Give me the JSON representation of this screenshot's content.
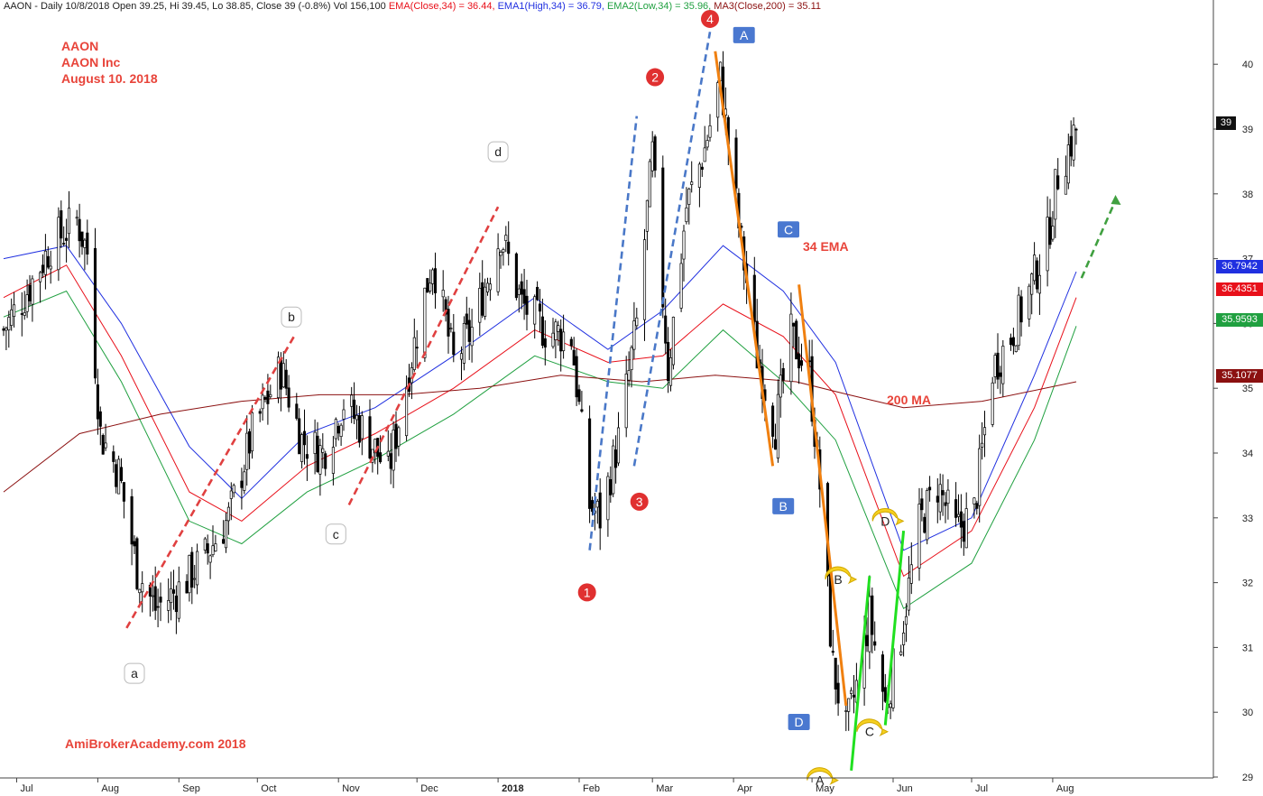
{
  "header": {
    "symbol_info": "AAON - Daily 10/8/2018 Open 39.25, Hi 39.45, Lo 38.85, Close 39 (-0.8%) Vol 156,100 ",
    "ema_close": "EMA(Close,34) = 36.44, ",
    "ema_high": "EMA1(High,34) = 36.79, ",
    "ema_low": "EMA2(Low,34) = 35.96, ",
    "ma200": "MA3(Close,200) = 35.11"
  },
  "title": {
    "line1": "AAON",
    "line2": "AAON Inc",
    "line3": "August 10. 2018"
  },
  "watermark": "AmiBrokerAcademy.com  2018",
  "annotations": {
    "ema34": "34 EMA",
    "ma200": "200 MA"
  },
  "price_tags": {
    "last": "39",
    "ema_high": "36.7942",
    "ema_close": "36.4351",
    "ema_low": "35.9593",
    "ma200": "35.1077"
  },
  "colors": {
    "candle": "#000000",
    "ema_close": "#e8101a",
    "ema_high": "#2030e0",
    "ema_low": "#20a040",
    "ma200": "#8b1010",
    "annotation": "#e8443a",
    "dashed_red": "#e04040",
    "dashed_blue": "#4a78c8",
    "orange_line": "#f08010",
    "green_line": "#20e020",
    "dashed_green": "#40a040",
    "label_blue": "#4a78d0",
    "label_yellow": "#f6d020",
    "label_red": "#e03030"
  },
  "chart_data": {
    "type": "candlestick",
    "title": "AAON - Daily 10/8/2018",
    "ylim": [
      28.9,
      40.6
    ],
    "y_ticks": [
      29,
      30,
      31,
      32,
      33,
      34,
      35,
      36,
      37,
      38,
      39,
      40
    ],
    "x_tick_labels": [
      "Jul",
      "Aug",
      "Sep",
      "Oct",
      "Nov",
      "Dec",
      "2018",
      "Feb",
      "Mar",
      "Apr",
      "May",
      "Jun",
      "Jul",
      "Aug"
    ],
    "close_path": [
      {
        "d": "2017-06-26",
        "c": 35.9
      },
      {
        "d": "2017-07-05",
        "c": 36.5
      },
      {
        "d": "2017-07-14",
        "c": 37.2
      },
      {
        "d": "2017-07-24",
        "c": 37.6
      },
      {
        "d": "2017-07-28",
        "c": 37.1
      },
      {
        "d": "2017-08-02",
        "c": 34.3
      },
      {
        "d": "2017-08-09",
        "c": 33.7
      },
      {
        "d": "2017-08-16",
        "c": 32.2
      },
      {
        "d": "2017-08-23",
        "c": 31.6
      },
      {
        "d": "2017-09-01",
        "c": 31.9
      },
      {
        "d": "2017-09-11",
        "c": 32.4
      },
      {
        "d": "2017-09-20",
        "c": 33.0
      },
      {
        "d": "2017-09-29",
        "c": 34.3
      },
      {
        "d": "2017-10-10",
        "c": 35.3
      },
      {
        "d": "2017-10-18",
        "c": 34.2
      },
      {
        "d": "2017-10-26",
        "c": 34.0
      },
      {
        "d": "2017-11-03",
        "c": 34.8
      },
      {
        "d": "2017-11-13",
        "c": 34.2
      },
      {
        "d": "2017-11-20",
        "c": 33.7
      },
      {
        "d": "2017-11-29",
        "c": 35.5
      },
      {
        "d": "2017-12-07",
        "c": 37.0
      },
      {
        "d": "2017-12-15",
        "c": 35.4
      },
      {
        "d": "2017-12-22",
        "c": 35.9
      },
      {
        "d": "2018-01-02",
        "c": 37.4
      },
      {
        "d": "2018-01-10",
        "c": 36.3
      },
      {
        "d": "2018-01-19",
        "c": 35.9
      },
      {
        "d": "2018-01-29",
        "c": 35.8
      },
      {
        "d": "2018-02-05",
        "c": 33.2
      },
      {
        "d": "2018-02-09",
        "c": 33.0
      },
      {
        "d": "2018-02-16",
        "c": 34.2
      },
      {
        "d": "2018-02-23",
        "c": 36.0
      },
      {
        "d": "2018-03-01",
        "c": 38.6
      },
      {
        "d": "2018-03-07",
        "c": 35.3
      },
      {
        "d": "2018-03-14",
        "c": 37.8
      },
      {
        "d": "2018-03-21",
        "c": 38.7
      },
      {
        "d": "2018-03-27",
        "c": 39.8
      },
      {
        "d": "2018-04-03",
        "c": 37.5
      },
      {
        "d": "2018-04-10",
        "c": 35.5
      },
      {
        "d": "2018-04-17",
        "c": 34.4
      },
      {
        "d": "2018-04-23",
        "c": 35.8
      },
      {
        "d": "2018-04-30",
        "c": 35.2
      },
      {
        "d": "2018-05-04",
        "c": 33.5
      },
      {
        "d": "2018-05-09",
        "c": 30.7
      },
      {
        "d": "2018-05-14",
        "c": 29.7
      },
      {
        "d": "2018-05-18",
        "c": 30.4
      },
      {
        "d": "2018-05-23",
        "c": 31.5
      },
      {
        "d": "2018-05-29",
        "c": 30.1
      },
      {
        "d": "2018-06-04",
        "c": 31.2
      },
      {
        "d": "2018-06-11",
        "c": 32.9
      },
      {
        "d": "2018-06-18",
        "c": 33.5
      },
      {
        "d": "2018-06-25",
        "c": 32.8
      },
      {
        "d": "2018-07-02",
        "c": 33.1
      },
      {
        "d": "2018-07-09",
        "c": 35.3
      },
      {
        "d": "2018-07-16",
        "c": 35.8
      },
      {
        "d": "2018-07-23",
        "c": 36.5
      },
      {
        "d": "2018-07-30",
        "c": 37.3
      },
      {
        "d": "2018-08-03",
        "c": 38.3
      },
      {
        "d": "2018-08-10",
        "c": 39.0
      }
    ],
    "series": [
      {
        "name": "EMA(Close,34)",
        "key": "ema_close",
        "points": [
          {
            "d": "2017-06-26",
            "v": 36.4
          },
          {
            "d": "2017-07-20",
            "v": 36.9
          },
          {
            "d": "2017-08-10",
            "v": 35.5
          },
          {
            "d": "2017-09-05",
            "v": 33.4
          },
          {
            "d": "2017-09-25",
            "v": 32.95
          },
          {
            "d": "2017-10-20",
            "v": 33.8
          },
          {
            "d": "2017-11-15",
            "v": 34.3
          },
          {
            "d": "2017-12-15",
            "v": 35.0
          },
          {
            "d": "2018-01-15",
            "v": 35.9
          },
          {
            "d": "2018-02-12",
            "v": 35.4
          },
          {
            "d": "2018-03-05",
            "v": 35.5
          },
          {
            "d": "2018-03-28",
            "v": 36.3
          },
          {
            "d": "2018-04-20",
            "v": 35.8
          },
          {
            "d": "2018-05-10",
            "v": 34.9
          },
          {
            "d": "2018-06-05",
            "v": 32.1
          },
          {
            "d": "2018-07-01",
            "v": 32.8
          },
          {
            "d": "2018-07-25",
            "v": 34.7
          },
          {
            "d": "2018-08-10",
            "v": 36.4
          }
        ]
      },
      {
        "name": "EMA1(High,34)",
        "key": "ema_high",
        "points": [
          {
            "d": "2017-06-26",
            "v": 37.0
          },
          {
            "d": "2017-07-20",
            "v": 37.2
          },
          {
            "d": "2017-08-10",
            "v": 36.0
          },
          {
            "d": "2017-09-05",
            "v": 34.1
          },
          {
            "d": "2017-09-25",
            "v": 33.3
          },
          {
            "d": "2017-10-20",
            "v": 34.3
          },
          {
            "d": "2017-11-15",
            "v": 34.7
          },
          {
            "d": "2017-12-15",
            "v": 35.5
          },
          {
            "d": "2018-01-15",
            "v": 36.4
          },
          {
            "d": "2018-02-12",
            "v": 35.6
          },
          {
            "d": "2018-03-05",
            "v": 36.2
          },
          {
            "d": "2018-03-28",
            "v": 37.2
          },
          {
            "d": "2018-04-20",
            "v": 36.5
          },
          {
            "d": "2018-05-10",
            "v": 35.4
          },
          {
            "d": "2018-06-05",
            "v": 32.5
          },
          {
            "d": "2018-07-01",
            "v": 33.0
          },
          {
            "d": "2018-07-25",
            "v": 35.2
          },
          {
            "d": "2018-08-10",
            "v": 36.8
          }
        ]
      },
      {
        "name": "EMA2(Low,34)",
        "key": "ema_low",
        "points": [
          {
            "d": "2017-06-26",
            "v": 36.1
          },
          {
            "d": "2017-07-20",
            "v": 36.5
          },
          {
            "d": "2017-08-10",
            "v": 35.1
          },
          {
            "d": "2017-09-05",
            "v": 32.95
          },
          {
            "d": "2017-09-25",
            "v": 32.6
          },
          {
            "d": "2017-10-20",
            "v": 33.4
          },
          {
            "d": "2017-11-15",
            "v": 33.9
          },
          {
            "d": "2017-12-15",
            "v": 34.6
          },
          {
            "d": "2018-01-15",
            "v": 35.5
          },
          {
            "d": "2018-02-12",
            "v": 35.1
          },
          {
            "d": "2018-03-05",
            "v": 35.0
          },
          {
            "d": "2018-03-28",
            "v": 35.9
          },
          {
            "d": "2018-04-20",
            "v": 35.1
          },
          {
            "d": "2018-05-10",
            "v": 34.2
          },
          {
            "d": "2018-06-05",
            "v": 31.6
          },
          {
            "d": "2018-07-01",
            "v": 32.3
          },
          {
            "d": "2018-07-25",
            "v": 34.2
          },
          {
            "d": "2018-08-10",
            "v": 35.96
          }
        ]
      },
      {
        "name": "MA3(Close,200)",
        "key": "ma200",
        "points": [
          {
            "d": "2017-06-26",
            "v": 33.4
          },
          {
            "d": "2017-07-25",
            "v": 34.3
          },
          {
            "d": "2017-08-25",
            "v": 34.6
          },
          {
            "d": "2017-09-25",
            "v": 34.8
          },
          {
            "d": "2017-10-25",
            "v": 34.9
          },
          {
            "d": "2017-11-25",
            "v": 34.9
          },
          {
            "d": "2017-12-25",
            "v": 35.0
          },
          {
            "d": "2018-01-25",
            "v": 35.2
          },
          {
            "d": "2018-02-25",
            "v": 35.1
          },
          {
            "d": "2018-03-25",
            "v": 35.2
          },
          {
            "d": "2018-04-25",
            "v": 35.1
          },
          {
            "d": "2018-05-15",
            "v": 34.9
          },
          {
            "d": "2018-06-05",
            "v": 34.7
          },
          {
            "d": "2018-07-05",
            "v": 34.8
          },
          {
            "d": "2018-08-10",
            "v": 35.1
          }
        ]
      }
    ],
    "trend_lines": [
      {
        "style": "dashed_red",
        "from": {
          "d": "2017-08-12",
          "v": 31.3
        },
        "to": {
          "d": "2017-10-15",
          "v": 35.8
        }
      },
      {
        "style": "dashed_red",
        "from": {
          "d": "2017-11-05",
          "v": 33.2
        },
        "to": {
          "d": "2018-01-01",
          "v": 37.8
        }
      },
      {
        "style": "dashed_blue",
        "from": {
          "d": "2018-02-05",
          "v": 32.5
        },
        "to": {
          "d": "2018-02-23",
          "v": 39.2
        }
      },
      {
        "style": "dashed_blue",
        "from": {
          "d": "2018-02-22",
          "v": 33.8
        },
        "to": {
          "d": "2018-03-23",
          "v": 40.5
        }
      },
      {
        "style": "orange_line",
        "from": {
          "d": "2018-03-25",
          "v": 40.2
        },
        "to": {
          "d": "2018-04-16",
          "v": 33.8
        }
      },
      {
        "style": "orange_line",
        "from": {
          "d": "2018-04-26",
          "v": 36.6
        },
        "to": {
          "d": "2018-05-14",
          "v": 30.1
        }
      },
      {
        "style": "green_line",
        "from": {
          "d": "2018-05-16",
          "v": 29.1
        },
        "to": {
          "d": "2018-05-23",
          "v": 32.1
        }
      },
      {
        "style": "green_line",
        "from": {
          "d": "2018-05-29",
          "v": 29.8
        },
        "to": {
          "d": "2018-06-05",
          "v": 32.8
        }
      },
      {
        "style": "dashed_green",
        "from": {
          "d": "2018-08-12",
          "v": 36.7
        },
        "to": {
          "d": "2018-08-25",
          "v": 37.9
        }
      }
    ],
    "wave_labels": [
      {
        "text": "a",
        "style": "white",
        "d": "2017-08-15",
        "v": 30.6
      },
      {
        "text": "b",
        "style": "white",
        "d": "2017-10-14",
        "v": 36.1
      },
      {
        "text": "c",
        "style": "white",
        "d": "2017-10-31",
        "v": 32.75
      },
      {
        "text": "d",
        "style": "white",
        "d": "2018-01-01",
        "v": 38.65
      },
      {
        "text": "1",
        "style": "red",
        "d": "2018-02-04",
        "v": 31.85
      },
      {
        "text": "2",
        "style": "red",
        "d": "2018-03-02",
        "v": 39.8
      },
      {
        "text": "3",
        "style": "red",
        "d": "2018-02-24",
        "v": 33.25
      },
      {
        "text": "4",
        "style": "red",
        "d": "2018-03-23",
        "v": 40.7
      },
      {
        "text": "A",
        "style": "blue",
        "d": "2018-04-05",
        "v": 40.45
      },
      {
        "text": "B",
        "style": "blue",
        "d": "2018-04-20",
        "v": 33.18
      },
      {
        "text": "C",
        "style": "blue",
        "d": "2018-04-22",
        "v": 37.45
      },
      {
        "text": "D",
        "style": "blue",
        "d": "2018-04-26",
        "v": 29.85
      },
      {
        "text": "A",
        "style": "yellow",
        "d": "2018-05-04",
        "v": 28.95
      },
      {
        "text": "B",
        "style": "yellow",
        "d": "2018-05-11",
        "v": 32.05
      },
      {
        "text": "C",
        "style": "yellow",
        "d": "2018-05-23",
        "v": 29.7
      },
      {
        "text": "D",
        "style": "yellow",
        "d": "2018-05-29",
        "v": 32.95
      }
    ]
  }
}
